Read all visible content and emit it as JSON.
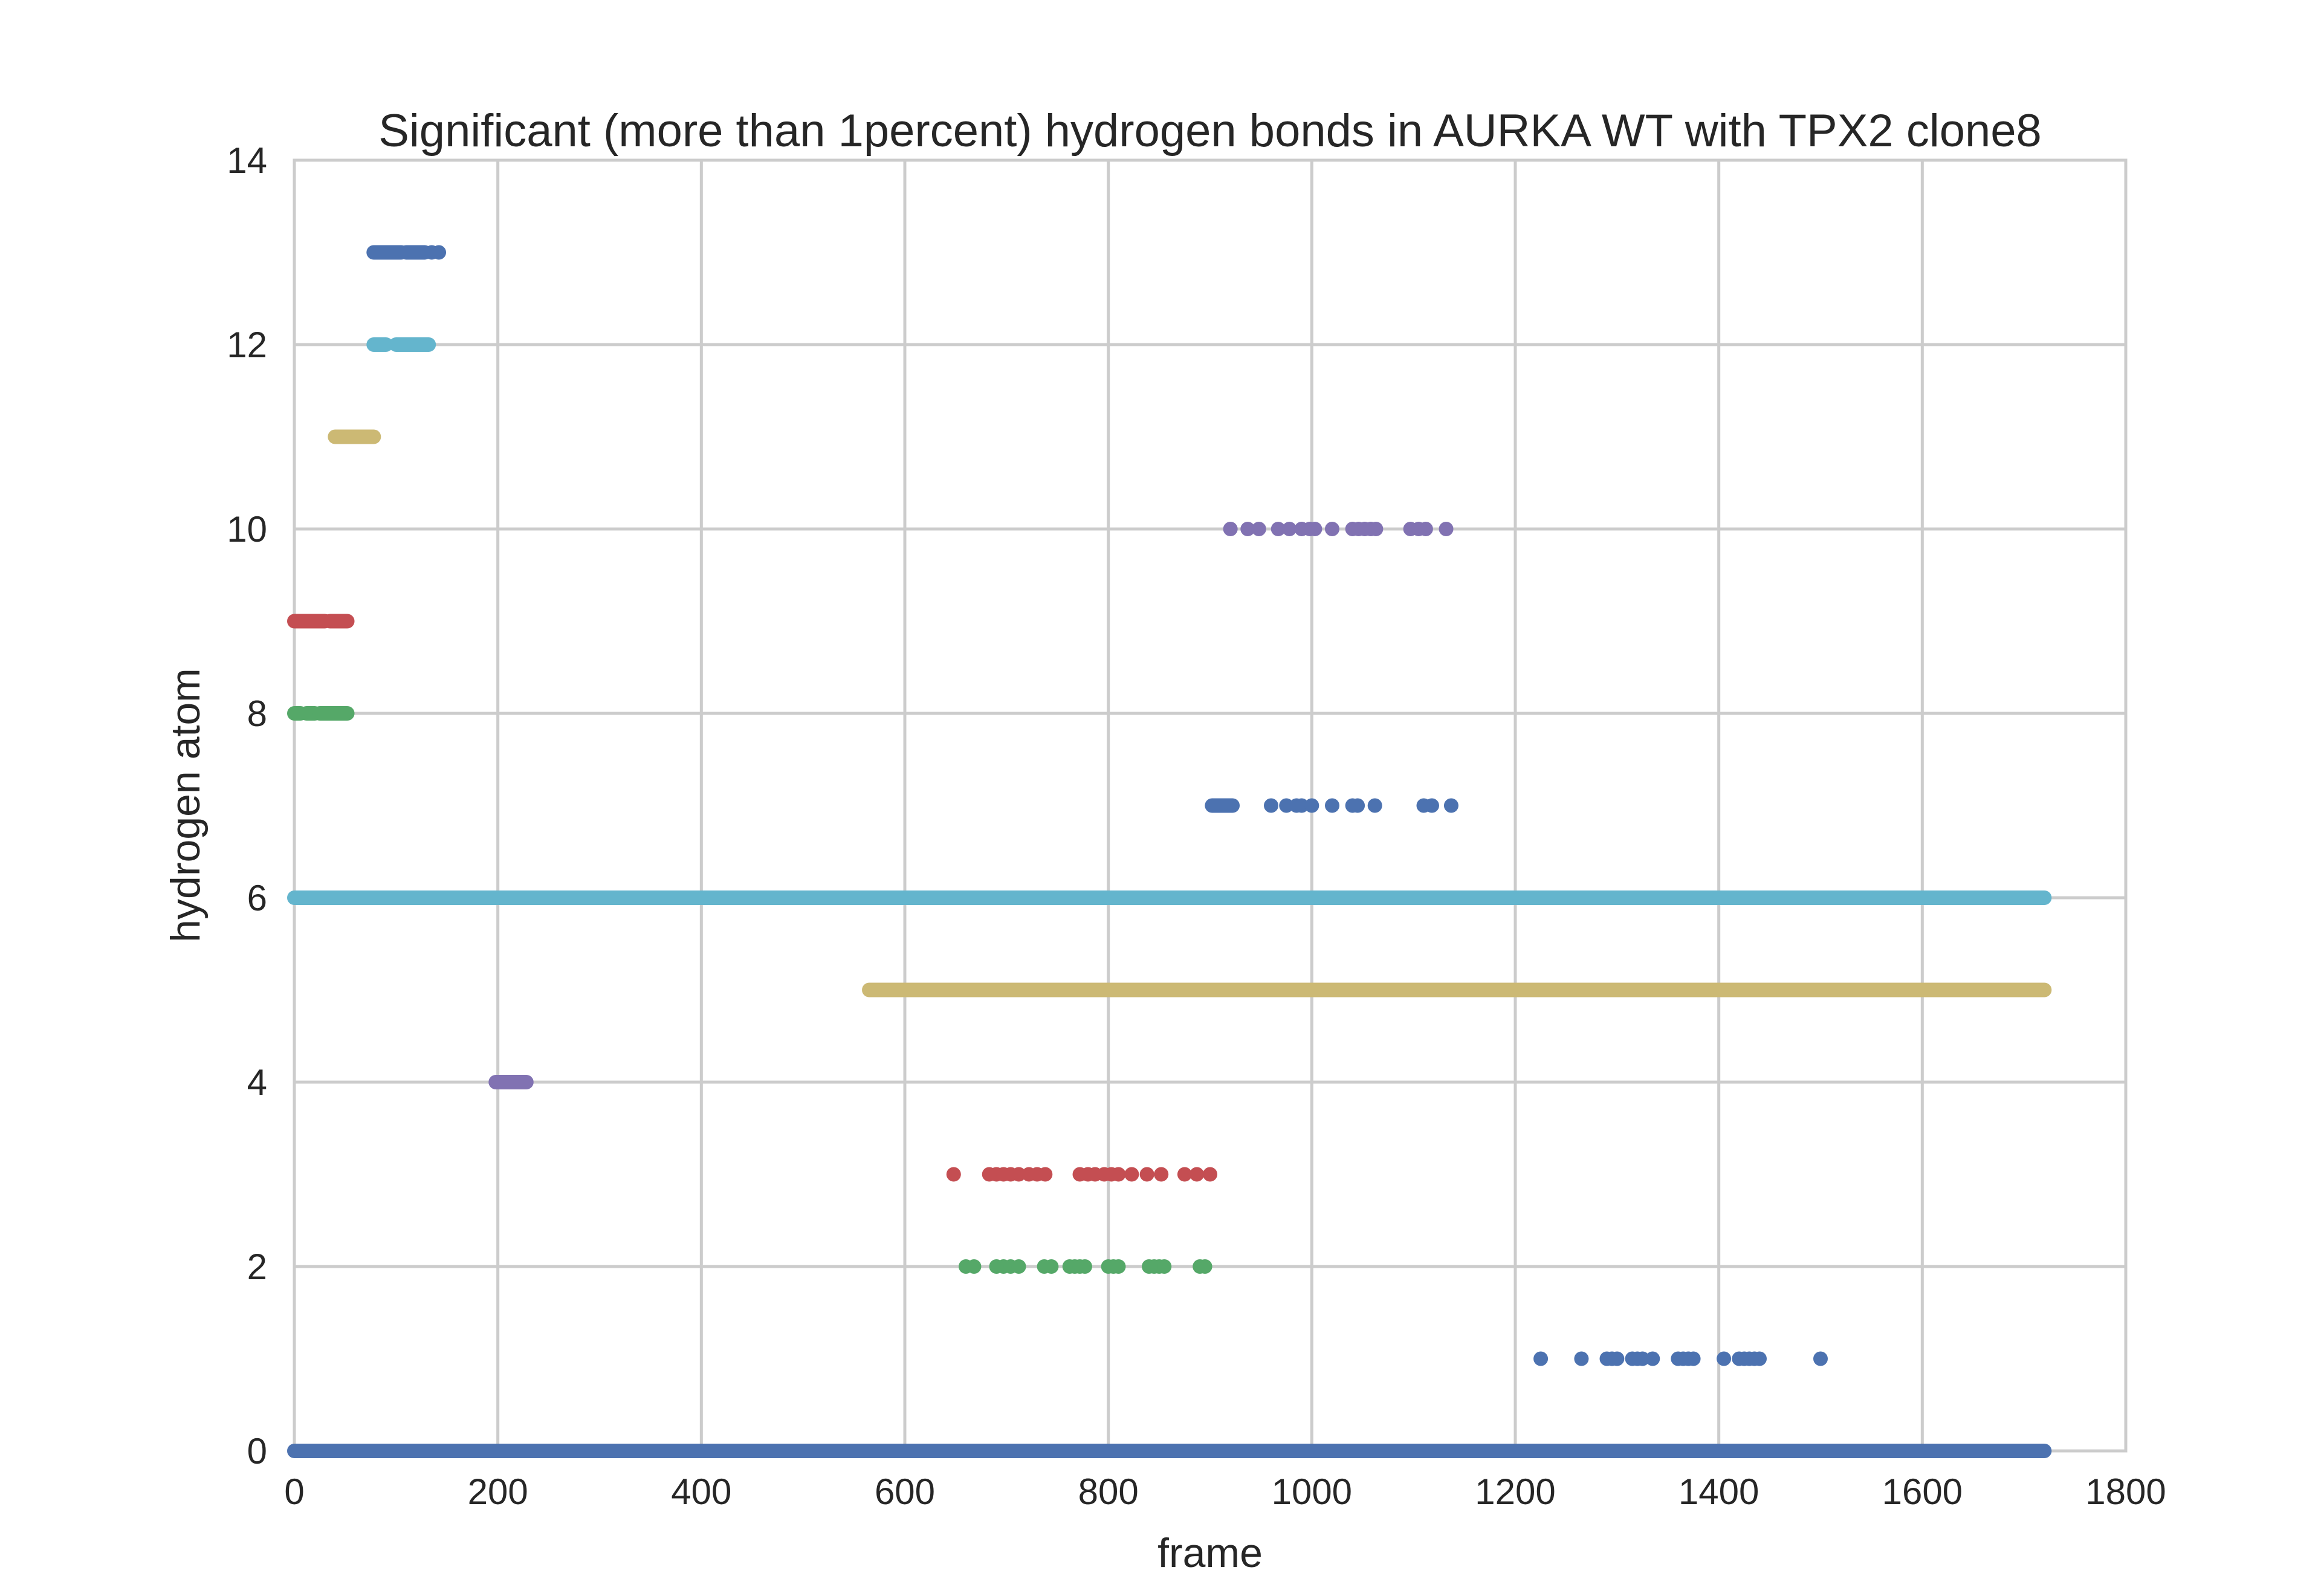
{
  "chart_data": {
    "type": "scatter",
    "title": "Significant (more than 1percent) hydrogen bonds in AURKA WT with TPX2 clone8",
    "xlabel": "frame",
    "ylabel": "hydrogen atom",
    "xlim": [
      0,
      1800
    ],
    "ylim": [
      0,
      14
    ],
    "xticks": [
      0,
      200,
      400,
      600,
      800,
      1000,
      1200,
      1400,
      1600,
      1800
    ],
    "yticks": [
      0,
      2,
      4,
      6,
      8,
      10,
      12,
      14
    ],
    "grid": true,
    "legend": "none",
    "colors": {
      "blue": "#4c72b0",
      "green": "#55a868",
      "red": "#c44e52",
      "purple": "#8172b2",
      "yellow": "#ccb974",
      "cyan": "#64b5cd",
      "grid": "#cccccc",
      "text": "#262626"
    },
    "series": [
      {
        "y": 0,
        "color": "blue",
        "ranges": [
          [
            0,
            1720
          ]
        ],
        "points": []
      },
      {
        "y": 1,
        "color": "blue",
        "ranges": [],
        "points": [
          1225,
          1265,
          1290,
          1295,
          1300,
          1315,
          1320,
          1325,
          1335,
          1360,
          1365,
          1370,
          1375,
          1405,
          1420,
          1425,
          1430,
          1435,
          1440,
          1500
        ]
      },
      {
        "y": 2,
        "color": "green",
        "ranges": [],
        "points": [
          660,
          668,
          690,
          697,
          704,
          712,
          737,
          744,
          762,
          767,
          772,
          777,
          800,
          805,
          810,
          840,
          845,
          850,
          855,
          890,
          895
        ]
      },
      {
        "y": 3,
        "color": "red",
        "ranges": [],
        "points": [
          648,
          683,
          690,
          697,
          704,
          712,
          722,
          730,
          738,
          772,
          780,
          787,
          796,
          803,
          810,
          823,
          838,
          852,
          875,
          887,
          900
        ]
      },
      {
        "y": 4,
        "color": "purple",
        "ranges": [
          [
            198,
            228
          ]
        ],
        "points": []
      },
      {
        "y": 5,
        "color": "yellow",
        "ranges": [
          [
            565,
            1720
          ]
        ],
        "points": []
      },
      {
        "y": 6,
        "color": "cyan",
        "ranges": [
          [
            0,
            1720
          ]
        ],
        "points": []
      },
      {
        "y": 7,
        "color": "blue",
        "ranges": [
          [
            902,
            922
          ]
        ],
        "points": [
          960,
          975,
          985,
          990,
          1000,
          1020,
          1040,
          1045,
          1062,
          1110,
          1118,
          1137
        ]
      },
      {
        "y": 8,
        "color": "green",
        "ranges": [
          [
            0,
            6
          ],
          [
            12,
            20
          ],
          [
            25,
            52
          ]
        ],
        "points": []
      },
      {
        "y": 9,
        "color": "red",
        "ranges": [
          [
            0,
            30
          ],
          [
            35,
            52
          ]
        ],
        "points": []
      },
      {
        "y": 10,
        "color": "purple",
        "ranges": [],
        "points": [
          920,
          937,
          948,
          967,
          978,
          990,
          998,
          1003,
          1020,
          1040,
          1046,
          1052,
          1058,
          1063,
          1097,
          1105,
          1112,
          1132
        ]
      },
      {
        "y": 11,
        "color": "yellow",
        "ranges": [
          [
            40,
            78
          ]
        ],
        "points": []
      },
      {
        "y": 12,
        "color": "cyan",
        "ranges": [
          [
            78,
            90
          ],
          [
            100,
            132
          ]
        ],
        "points": []
      },
      {
        "y": 13,
        "color": "blue",
        "ranges": [
          [
            78,
            105
          ],
          [
            110,
            128
          ]
        ],
        "points": [
          135,
          142
        ]
      }
    ]
  }
}
